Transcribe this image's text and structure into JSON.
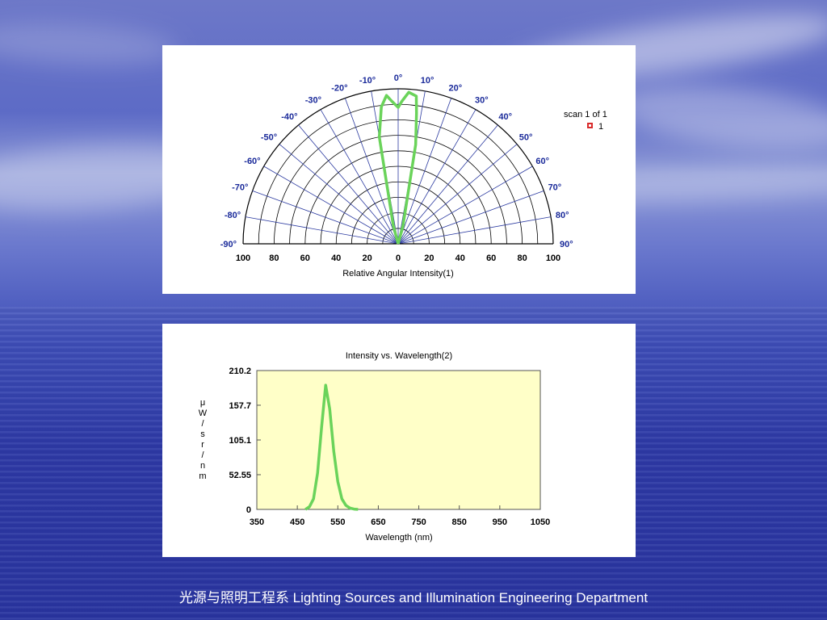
{
  "footer_text": "光源与照明工程系 Lighting Sources and Illumination Engineering Department",
  "chart_data": [
    {
      "type": "polar",
      "title": "",
      "xlabel": "Relative Angular Intensity(1)",
      "angle_ticks": [
        "-90°",
        "-80°",
        "-70°",
        "-60°",
        "-50°",
        "-40°",
        "-30°",
        "-20°",
        "-10°",
        "0°",
        "10°",
        "20°",
        "30°",
        "40°",
        "50°",
        "60°",
        "70°",
        "80°",
        "90°"
      ],
      "radial_ticks": [
        "100",
        "80",
        "60",
        "40",
        "20",
        "0",
        "20",
        "40",
        "60",
        "80",
        "100"
      ],
      "angle_range": [
        -90,
        90
      ],
      "radial_range": [
        0,
        100
      ],
      "grid": true,
      "legend": {
        "title": "scan 1 of 1",
        "entry": "1",
        "position": "top-right"
      },
      "series": [
        {
          "name": "1",
          "color": "#6ad35a",
          "points": [
            {
              "angle": -15,
              "r": 12
            },
            {
              "angle": -10,
              "r": 70
            },
            {
              "angle": -7,
              "r": 89
            },
            {
              "angle": -4.5,
              "r": 96
            },
            {
              "angle": -2.5,
              "r": 92
            },
            {
              "angle": 0,
              "r": 88
            },
            {
              "angle": 1.5,
              "r": 92
            },
            {
              "angle": 4,
              "r": 98
            },
            {
              "angle": 7,
              "r": 96
            },
            {
              "angle": 8,
              "r": 85
            },
            {
              "angle": 10,
              "r": 65
            },
            {
              "angle": 15,
              "r": 12
            }
          ]
        }
      ],
      "colors": {
        "grid": "#2b3aa0",
        "arc": "#000000",
        "ticks": "#1a2a9a"
      }
    },
    {
      "type": "line",
      "title": "Intensity vs. Wavelength(2)",
      "xlabel": "Wavelength (nm)",
      "ylabel": "μW/sr/nm",
      "ylabel_chars": [
        "μ",
        "W",
        "/",
        "s",
        "r",
        "/",
        "n",
        "m"
      ],
      "x_ticks": [
        "350",
        "450",
        "550",
        "650",
        "750",
        "850",
        "950",
        "1050"
      ],
      "y_ticks": [
        "0",
        "52.55",
        "105.1",
        "157.7",
        "210.2"
      ],
      "xlim": [
        350,
        1050
      ],
      "ylim": [
        0,
        210.2
      ],
      "grid": false,
      "plot_background": "#ffffc8",
      "series": [
        {
          "color": "#6ad35a",
          "x": [
            470,
            480,
            490,
            500,
            510,
            520,
            530,
            540,
            550,
            560,
            570,
            580,
            590,
            600
          ],
          "y": [
            0,
            4,
            16,
            55,
            125,
            188,
            152,
            88,
            42,
            16,
            6,
            2,
            0.5,
            0
          ]
        }
      ]
    }
  ]
}
